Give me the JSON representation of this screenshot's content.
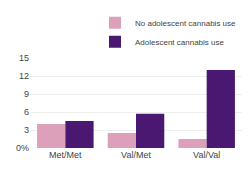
{
  "chart_data": {
    "type": "bar",
    "categories": [
      "Met/Met",
      "Val/Met",
      "Val/Val"
    ],
    "series": [
      {
        "name": "No adolescent cannabis use",
        "color": "#dda0bb",
        "values": [
          4.0,
          2.5,
          1.5
        ]
      },
      {
        "name": "Adolescent cannabis use",
        "color": "#4a1870",
        "values": [
          4.5,
          5.7,
          13.0
        ]
      }
    ],
    "ylim": [
      0,
      15
    ],
    "yticks": [
      {
        "value": 0,
        "label": "0%"
      },
      3,
      6,
      9,
      12,
      15
    ],
    "grid": true,
    "legend": "upper right"
  }
}
